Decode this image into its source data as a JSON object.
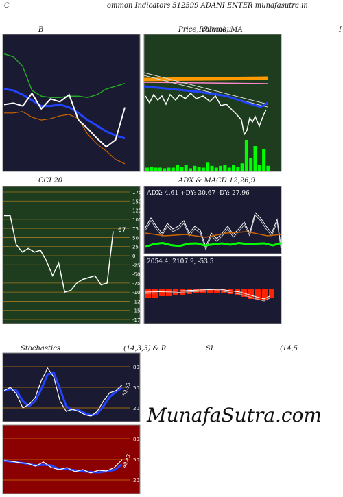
{
  "header": {
    "left_char": "C",
    "title": "ommon  Indicators 512599 ADANI ENTER munafasutra.in"
  },
  "watermark": "MunafaSutra.com",
  "colors": {
    "navy_bg": "#1a1a33",
    "green_bg": "#1e3d1e",
    "red_bg": "#8b0000",
    "white": "#ffffff",
    "blue": "#2244ff",
    "orange": "#cc6600",
    "green": "#22aa22",
    "bright_green": "#00ff00"
  },
  "panels": {
    "bollinger": {
      "title": "B"
    },
    "price": {
      "title": "Price,  Volume, MA",
      "overlap": "Ichimoku",
      "right_char": "I"
    },
    "cci": {
      "title": "CCI 20",
      "last_label": "67"
    },
    "adx_macd": {
      "title": "ADX  & MACD 12,26,9",
      "adx_text": "ADX: 4.61 +DY: 30.67 -DY: 27.96",
      "macd_text": "2054.4,  2107.9,  -53.5"
    },
    "stochastics": {
      "title_left": "Stochastics",
      "title_mid": "(14,3,3) & R",
      "last_label": "53.53"
    },
    "rsi": {
      "title_left": "SI",
      "title_right": "(14,5",
      "last_label": "49.43"
    }
  },
  "chart_data": [
    {
      "type": "line",
      "panel": "bollinger",
      "series": [
        {
          "values": [
            8.1,
            7.9,
            7.2,
            5.5,
            5.1,
            5.0,
            5.0,
            5.1,
            5.1,
            5.0,
            5.2,
            5.6,
            5.8,
            6.0
          ]
        },
        {
          "values": [
            5.6,
            5.5,
            5.2,
            4.8,
            4.4,
            4.4,
            4.5,
            4.3,
            3.9,
            3.4,
            3.0,
            2.6,
            2.3,
            2.1
          ]
        },
        {
          "values": [
            3.9,
            3.9,
            4.0,
            3.6,
            3.4,
            3.5,
            3.7,
            3.8,
            3.5,
            2.4,
            1.7,
            1.2,
            0.6,
            0.3
          ]
        },
        {
          "values": [
            4.5,
            4.6,
            4.4,
            5.3,
            4.2,
            4.9,
            4.7,
            5.2,
            3.4,
            2.8,
            2.1,
            1.5,
            2.0,
            4.3
          ]
        }
      ]
    },
    {
      "type": "bar",
      "panel": "price",
      "name": "volume",
      "values": [
        0.05,
        0.06,
        0.05,
        0.05,
        0.04,
        0.05,
        0.05,
        0.09,
        0.06,
        0.1,
        0.04,
        0.08,
        0.06,
        0.05,
        0.13,
        0.08,
        0.05,
        0.08,
        0.09,
        0.05,
        0.1,
        0.06,
        0.12,
        0.5,
        0.2,
        0.4,
        0.1,
        0.35,
        0.08
      ]
    },
    {
      "type": "line",
      "panel": "cci",
      "x": [
        0,
        1,
        2,
        3,
        4,
        5,
        6,
        7,
        8,
        9,
        10,
        11,
        12,
        13,
        14,
        15,
        16,
        17,
        18
      ],
      "values": [
        110,
        110,
        30,
        10,
        20,
        10,
        15,
        -15,
        -55,
        -20,
        -100,
        -95,
        -75,
        -65,
        -60,
        -55,
        -80,
        -75,
        67
      ],
      "yticks": [
        175,
        150,
        125,
        100,
        75,
        50,
        25,
        0,
        -25,
        -50,
        -75,
        -100,
        -125,
        -150,
        -175
      ],
      "ylim": [
        -175,
        175
      ]
    },
    {
      "type": "line",
      "panel": "adx",
      "values": [
        20,
        28,
        31,
        25,
        22,
        29,
        30,
        24,
        27,
        30,
        26,
        31,
        28,
        29,
        30,
        24,
        31
      ]
    },
    {
      "type": "bar",
      "panel": "macd",
      "name": "histogram",
      "values": [
        -0.6,
        -0.6,
        -0.5,
        -0.5,
        -0.45,
        -0.4,
        -0.35,
        -0.3,
        -0.3,
        -0.25,
        -0.25,
        -0.3,
        -0.35,
        -0.45,
        -0.55,
        -0.7,
        -0.8,
        -0.75,
        -0.6
      ]
    },
    {
      "type": "line",
      "panel": "stochastics",
      "values": [
        45,
        50,
        40,
        20,
        25,
        35,
        60,
        78,
        65,
        30,
        15,
        18,
        15,
        10,
        8,
        15,
        30,
        42,
        45,
        53.53
      ],
      "yticks": [
        80,
        50,
        20
      ],
      "ylim": [
        0,
        100
      ]
    },
    {
      "type": "line",
      "panel": "rsi",
      "values": [
        48,
        47,
        45,
        44,
        40,
        46,
        38,
        35,
        38,
        32,
        35,
        30,
        34,
        33,
        38,
        49.43
      ],
      "yticks": [
        80,
        50,
        20
      ],
      "ylim": [
        0,
        100
      ]
    }
  ]
}
